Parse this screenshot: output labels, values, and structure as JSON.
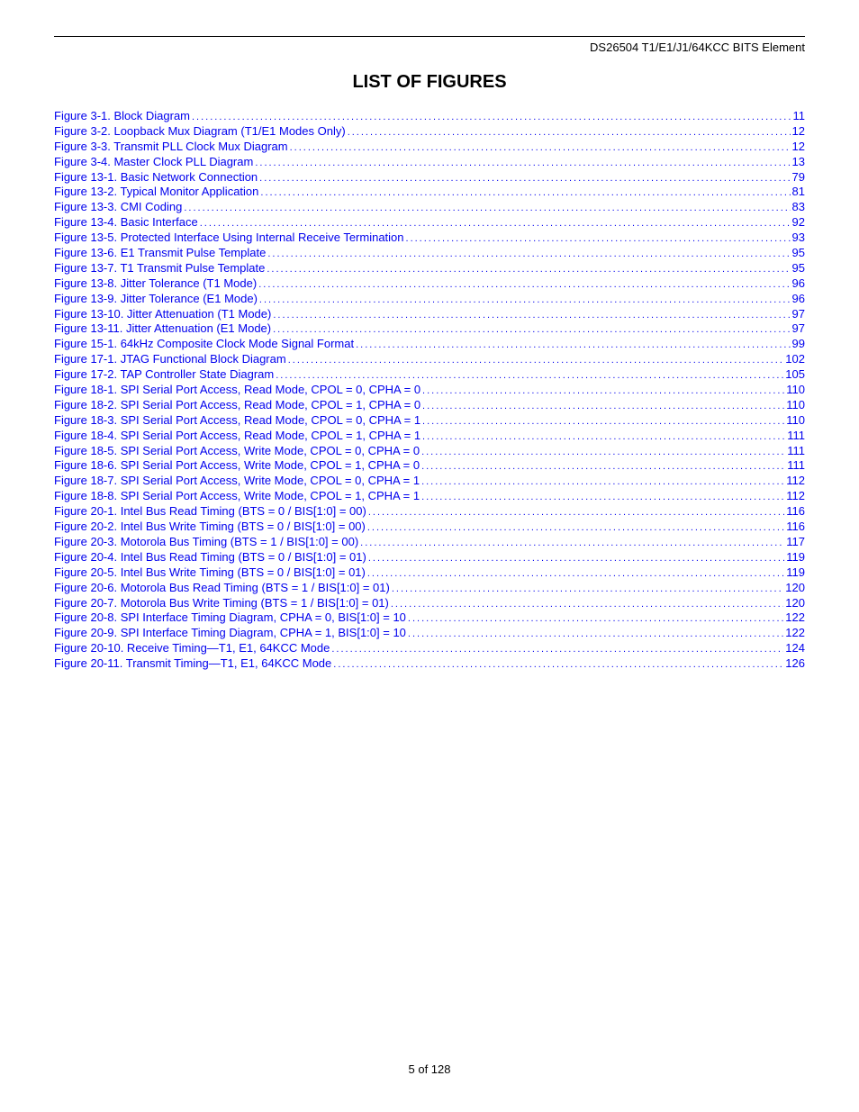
{
  "header": {
    "doc_title": "DS26504 T1/E1/J1/64KCC BITS Element"
  },
  "title": "LIST OF FIGURES",
  "link_color": "#0000ee",
  "text_color": "#000000",
  "background_color": "#ffffff",
  "font_family": "Arial",
  "body_fontsize": 13,
  "title_fontsize": 20,
  "toc": [
    {
      "label": "Figure 3-1. Block Diagram",
      "page": "11"
    },
    {
      "label": "Figure 3-2. Loopback Mux Diagram (T1/E1 Modes Only)",
      "page": "12"
    },
    {
      "label": "Figure 3-3. Transmit PLL Clock Mux Diagram",
      "page": "12"
    },
    {
      "label": "Figure 3-4. Master Clock PLL Diagram",
      "page": "13"
    },
    {
      "label": "Figure 13-1. Basic Network Connection",
      "page": "79"
    },
    {
      "label": "Figure 13-2. Typical Monitor Application",
      "page": "81"
    },
    {
      "label": "Figure 13-3. CMI Coding",
      "page": "83"
    },
    {
      "label": "Figure 13-4. Basic Interface",
      "page": "92"
    },
    {
      "label": "Figure 13-5. Protected Interface Using Internal Receive Termination",
      "page": "93"
    },
    {
      "label": "Figure 13-6. E1 Transmit Pulse Template",
      "page": "95"
    },
    {
      "label": "Figure 13-7. T1 Transmit Pulse Template",
      "page": "95"
    },
    {
      "label": "Figure 13-8. Jitter Tolerance (T1 Mode)",
      "page": "96"
    },
    {
      "label": "Figure 13-9. Jitter Tolerance (E1 Mode)",
      "page": "96"
    },
    {
      "label": "Figure 13-10. Jitter Attenuation (T1 Mode)",
      "page": "97"
    },
    {
      "label": "Figure 13-11. Jitter Attenuation (E1 Mode)",
      "page": "97"
    },
    {
      "label": "Figure 15-1. 64kHz Composite Clock Mode Signal Format",
      "page": "99"
    },
    {
      "label": "Figure 17-1. JTAG Functional Block Diagram",
      "page": "102"
    },
    {
      "label": "Figure 17-2. TAP Controller State Diagram",
      "page": "105"
    },
    {
      "label": "Figure 18-1. SPI Serial Port Access, Read Mode, CPOL = 0, CPHA = 0",
      "page": "110"
    },
    {
      "label": "Figure 18-2. SPI Serial Port Access, Read Mode, CPOL = 1, CPHA = 0",
      "page": "110"
    },
    {
      "label": "Figure 18-3. SPI Serial Port Access, Read Mode, CPOL = 0, CPHA = 1",
      "page": "110"
    },
    {
      "label": "Figure 18-4. SPI Serial Port Access, Read Mode, CPOL = 1, CPHA = 1",
      "page": "111"
    },
    {
      "label": "Figure 18-5. SPI Serial Port Access, Write Mode, CPOL = 0, CPHA = 0",
      "page": "111"
    },
    {
      "label": "Figure 18-6. SPI Serial Port Access, Write Mode, CPOL = 1, CPHA = 0",
      "page": "111"
    },
    {
      "label": "Figure 18-7. SPI Serial Port Access, Write Mode, CPOL = 0, CPHA = 1",
      "page": "112"
    },
    {
      "label": "Figure 18-8. SPI Serial Port Access, Write Mode, CPOL = 1, CPHA = 1",
      "page": "112"
    },
    {
      "label": "Figure 20-1. Intel Bus Read Timing (BTS = 0 / BIS[1:0]  = 00)",
      "page": "116"
    },
    {
      "label": "Figure 20-2. Intel Bus Write Timing (BTS = 0 / BIS[1:0] = 00)",
      "page": "116"
    },
    {
      "label": "Figure 20-3. Motorola Bus Timing (BTS = 1 / BIS[1:0] = 00)",
      "page": "117"
    },
    {
      "label": "Figure 20-4. Intel Bus Read Timing (BTS = 0 / BIS[1:0] = 01)",
      "page": "119"
    },
    {
      "label": "Figure 20-5. Intel Bus Write Timing (BTS = 0 / BIS[1:0] = 01)",
      "page": "119"
    },
    {
      "label": "Figure 20-6. Motorola Bus Read Timing (BTS = 1 / BIS[1:0] = 01)",
      "page": "120"
    },
    {
      "label": "Figure 20-7. Motorola Bus Write Timing (BTS = 1 / BIS[1:0] = 01)",
      "page": "120"
    },
    {
      "label": "Figure 20-8. SPI Interface Timing Diagram, CPHA = 0, BIS[1:0] = 10",
      "page": "122"
    },
    {
      "label": "Figure 20-9. SPI Interface Timing Diagram, CPHA = 1, BIS[1:0] = 10",
      "page": "122"
    },
    {
      "label": "Figure 20-10. Receive Timing—T1, E1, 64KCC Mode",
      "page": "124"
    },
    {
      "label": "Figure 20-11. Transmit Timing—T1, E1, 64KCC Mode",
      "page": "126"
    }
  ],
  "footer": {
    "text": "5 of 128"
  }
}
